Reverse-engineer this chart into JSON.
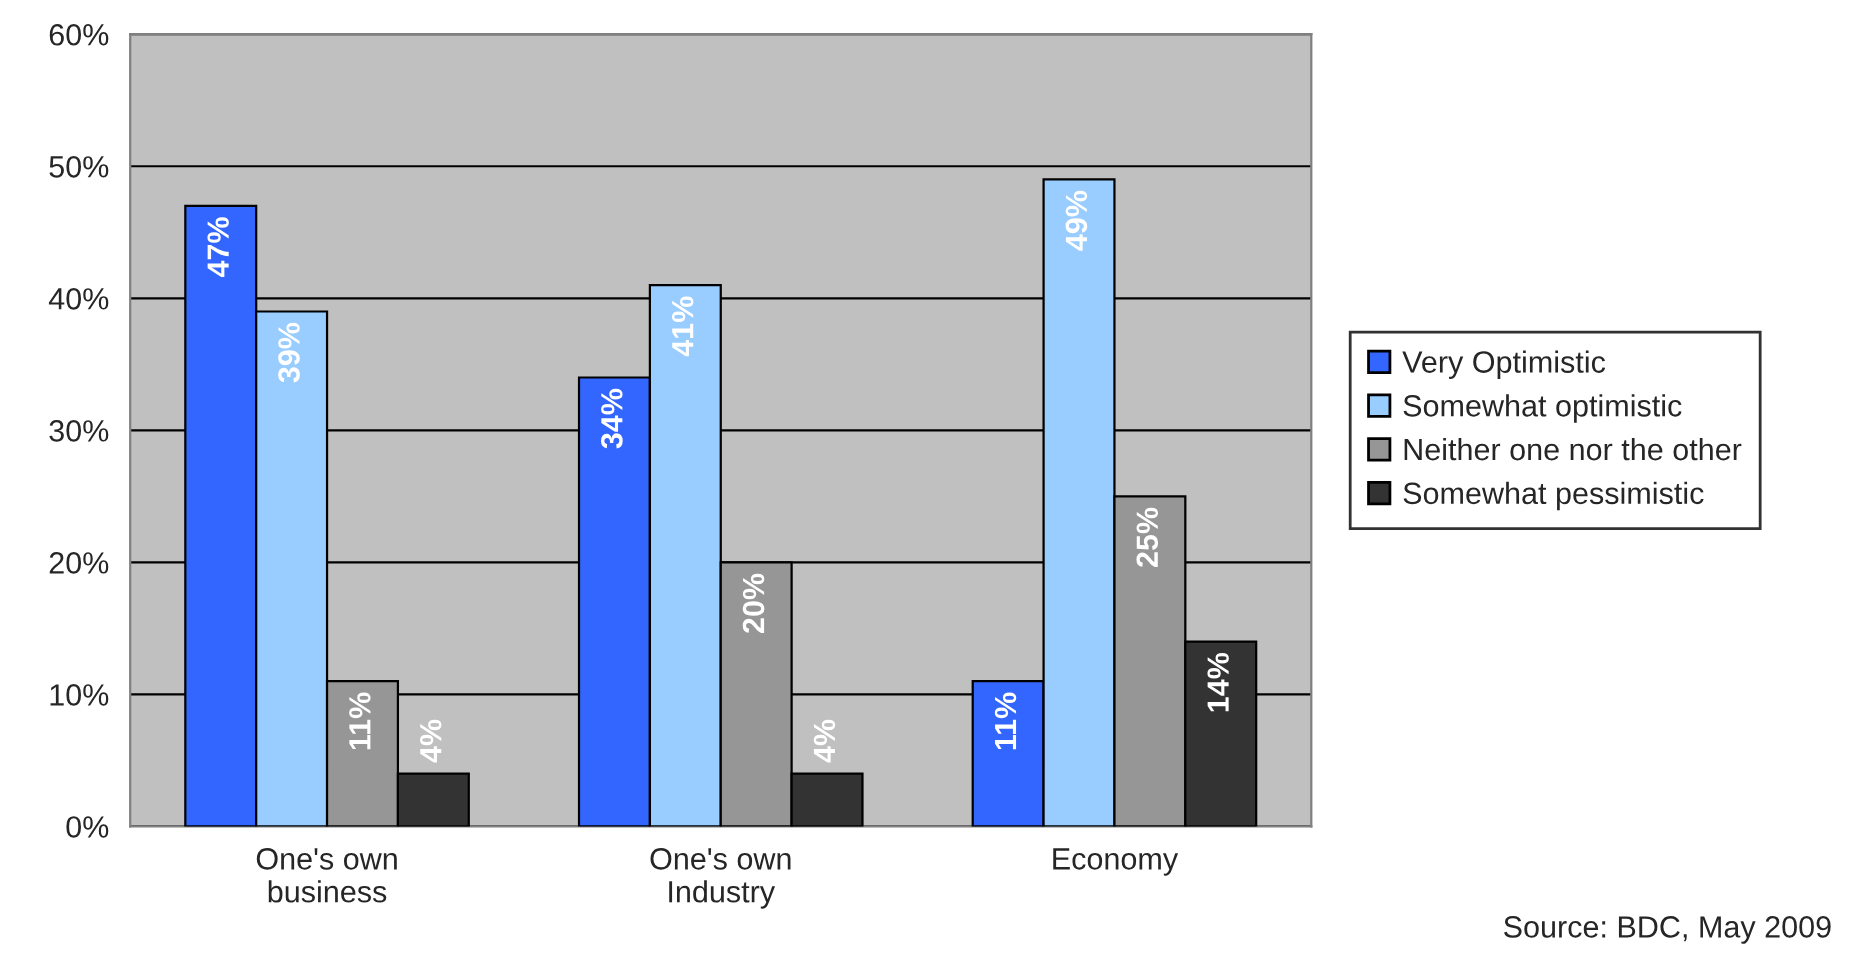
{
  "chart_data": {
    "type": "bar",
    "categories": [
      "One's own\nbusiness",
      "One's own\nIndustry",
      "Economy"
    ],
    "series": [
      {
        "name": "Very Optimistic",
        "color": "#3366ff",
        "values": [
          47,
          34,
          11
        ],
        "value_labels": [
          "47%",
          "34%",
          "11%"
        ]
      },
      {
        "name": "Somewhat optimistic",
        "color": "#99ccff",
        "values": [
          39,
          41,
          49
        ],
        "value_labels": [
          "39%",
          "41%",
          "49%"
        ]
      },
      {
        "name": "Neither one nor the other",
        "color": "#969696",
        "values": [
          11,
          20,
          25
        ],
        "value_labels": [
          "11%",
          "20%",
          "25%"
        ]
      },
      {
        "name": "Somewhat pessimistic",
        "color": "#333333",
        "values": [
          4,
          4,
          14
        ],
        "value_labels": [
          "4%",
          "4%",
          "14%"
        ]
      }
    ],
    "ylim": [
      0,
      60
    ],
    "yticks": [
      {
        "value": 0,
        "label": "0%"
      },
      {
        "value": 10,
        "label": "10%"
      },
      {
        "value": 20,
        "label": "20%"
      },
      {
        "value": 30,
        "label": "30%"
      },
      {
        "value": 40,
        "label": "40%"
      },
      {
        "value": 50,
        "label": "50%"
      },
      {
        "value": 60,
        "label": "60%"
      }
    ],
    "grid": "y",
    "legend": "right",
    "annotations": [
      "Source: BDC, May 2009"
    ]
  }
}
